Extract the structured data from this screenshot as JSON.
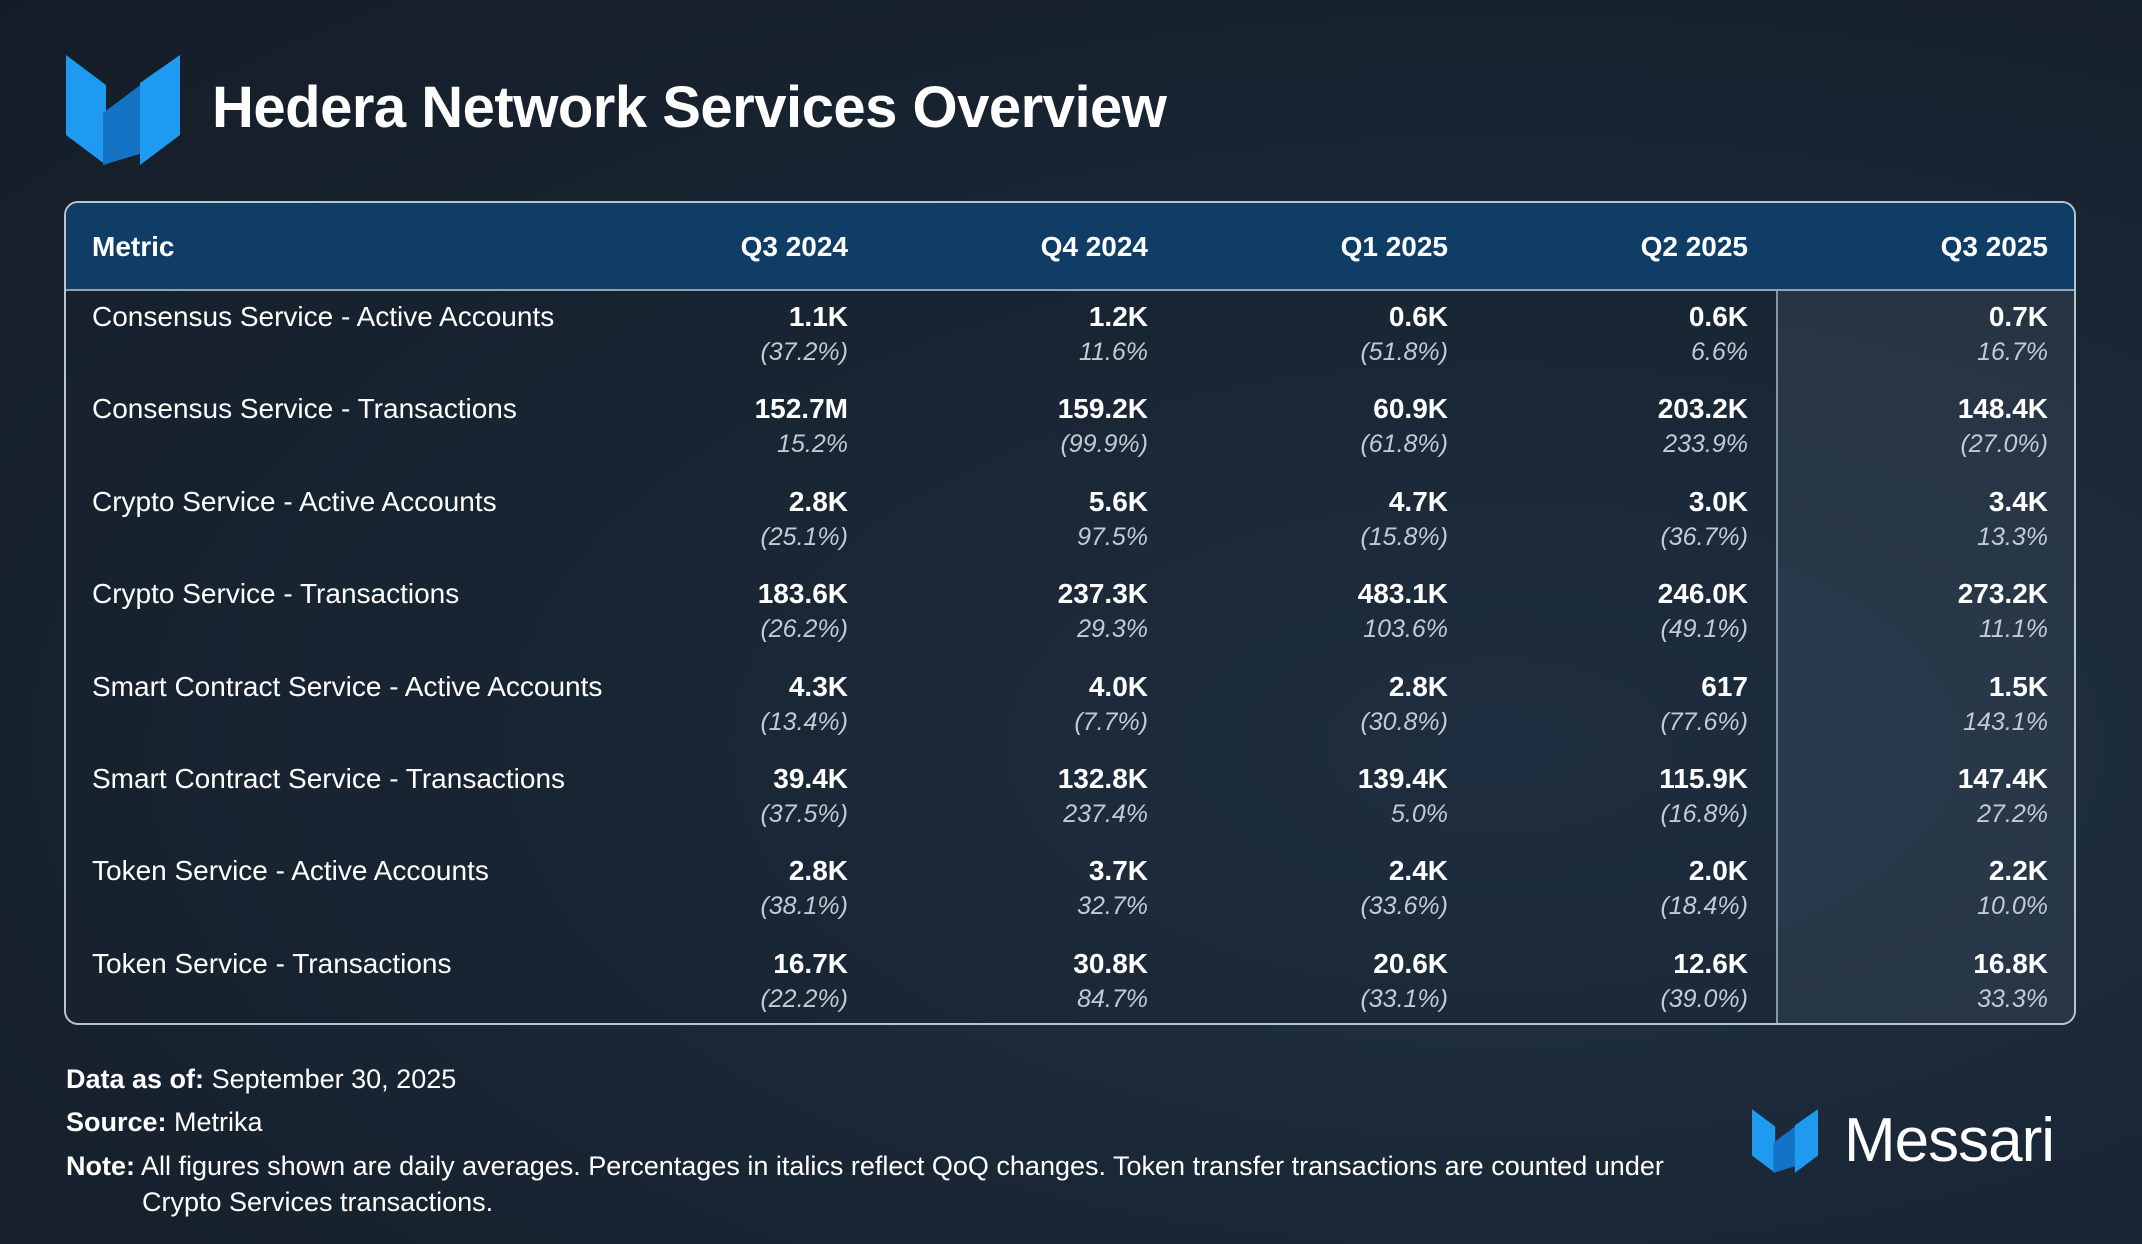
{
  "header": {
    "title": "Hedera Network Services Overview",
    "logo_icon": "messari-m-icon"
  },
  "chart_data": {
    "type": "table",
    "columns": [
      "Metric",
      "Q3 2024",
      "Q4 2024",
      "Q1 2025",
      "Q2 2025",
      "Q3 2025"
    ],
    "highlight_column": "Q3 2025",
    "rows": [
      {
        "metric": "Consensus Service - Active Accounts",
        "values": [
          "1.1K",
          "1.2K",
          "0.6K",
          "0.6K",
          "0.7K"
        ],
        "changes": [
          "(37.2%)",
          "11.6%",
          "(51.8%)",
          "6.6%",
          "16.7%"
        ]
      },
      {
        "metric": "Consensus Service - Transactions",
        "values": [
          "152.7M",
          "159.2K",
          "60.9K",
          "203.2K",
          "148.4K"
        ],
        "changes": [
          "15.2%",
          "(99.9%)",
          "(61.8%)",
          "233.9%",
          "(27.0%)"
        ]
      },
      {
        "metric": "Crypto Service - Active Accounts",
        "values": [
          "2.8K",
          "5.6K",
          "4.7K",
          "3.0K",
          "3.4K"
        ],
        "changes": [
          "(25.1%)",
          "97.5%",
          "(15.8%)",
          "(36.7%)",
          "13.3%"
        ]
      },
      {
        "metric": "Crypto Service - Transactions",
        "values": [
          "183.6K",
          "237.3K",
          "483.1K",
          "246.0K",
          "273.2K"
        ],
        "changes": [
          "(26.2%)",
          "29.3%",
          "103.6%",
          "(49.1%)",
          "11.1%"
        ]
      },
      {
        "metric": "Smart Contract Service - Active Accounts",
        "values": [
          "4.3K",
          "4.0K",
          "2.8K",
          "617",
          "1.5K"
        ],
        "changes": [
          "(13.4%)",
          "(7.7%)",
          "(30.8%)",
          "(77.6%)",
          "143.1%"
        ]
      },
      {
        "metric": "Smart Contract Service - Transactions",
        "values": [
          "39.4K",
          "132.8K",
          "139.4K",
          "115.9K",
          "147.4K"
        ],
        "changes": [
          "(37.5%)",
          "237.4%",
          "5.0%",
          "(16.8%)",
          "27.2%"
        ]
      },
      {
        "metric": "Token Service - Active Accounts",
        "values": [
          "2.8K",
          "3.7K",
          "2.4K",
          "2.0K",
          "2.2K"
        ],
        "changes": [
          "(38.1%)",
          "32.7%",
          "(33.6%)",
          "(18.4%)",
          "10.0%"
        ]
      },
      {
        "metric": "Token Service - Transactions",
        "values": [
          "16.7K",
          "30.8K",
          "20.6K",
          "12.6K",
          "16.8K"
        ],
        "changes": [
          "(22.2%)",
          "84.7%",
          "(33.1%)",
          "(39.0%)",
          "33.3%"
        ]
      }
    ]
  },
  "footer": {
    "data_as_of_label": "Data as of:",
    "data_as_of_value": "September 30, 2025",
    "source_label": "Source:",
    "source_value": "Metrika",
    "note_label": "Note:",
    "note_line1": "All figures shown are daily averages. Percentages in italics reflect QoQ changes.  Token transfer transactions are counted under",
    "note_line2": "Crypto Services transactions."
  },
  "brand": {
    "name": "Messari",
    "icon": "messari-m-icon"
  },
  "colors": {
    "header_bg": "#0f3d66",
    "accent_blue": "#1e9bf0",
    "background": "#1a2736"
  }
}
